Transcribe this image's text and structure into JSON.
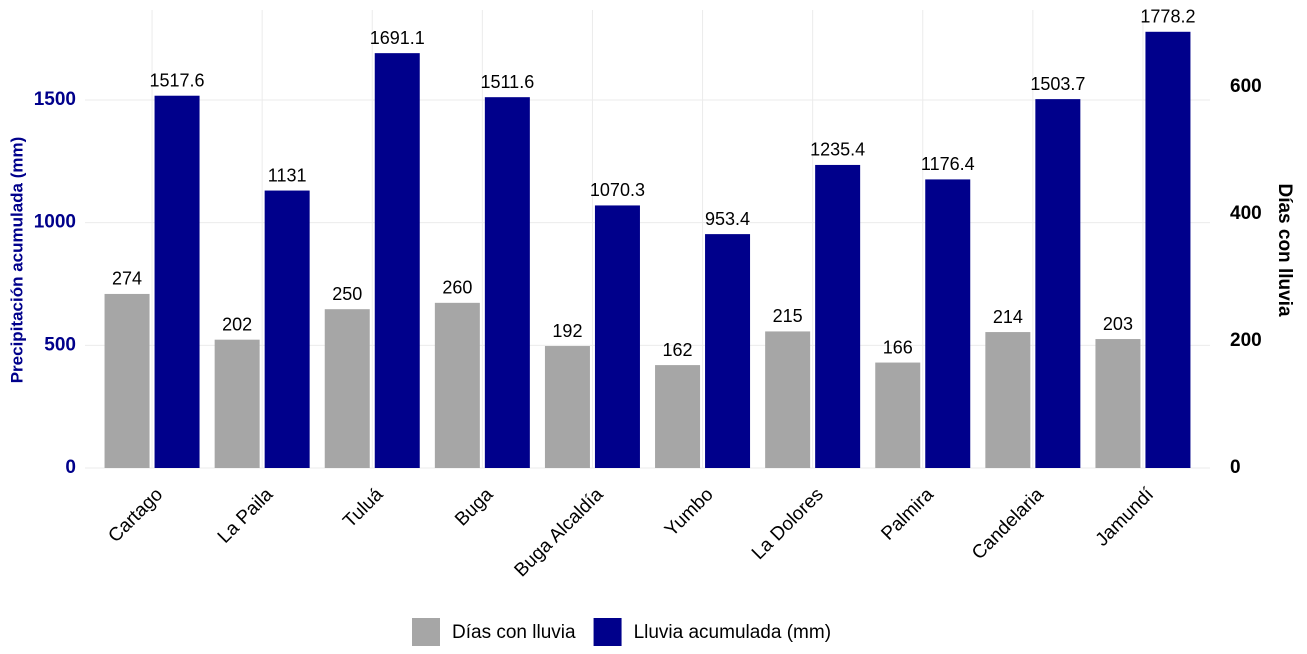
{
  "chart_data": {
    "type": "bar",
    "ylabel": "Precipitación acumulada (mm)",
    "y2label": "Días con lluvia",
    "categories": [
      "Cartago",
      "La Paila",
      "Tuluá",
      "Buga",
      "Buga Alcaldía",
      "Yumbo",
      "La Dolores",
      "Palmira",
      "Candelaria",
      "Jamundí"
    ],
    "series": [
      {
        "name": "Días con lluvia",
        "color": "#a6a6a6",
        "axis": "y2",
        "values": [
          274,
          202,
          250,
          260,
          192,
          162,
          215,
          166,
          214,
          203
        ]
      },
      {
        "name": "Lluvia acumulada (mm)",
        "color": "#00008b",
        "values": [
          1517.6,
          1131,
          1691.1,
          1511.6,
          1070.3,
          953.4,
          1235.4,
          1176.4,
          1503.7,
          1778.2
        ]
      }
    ],
    "ylim": [
      0,
      1867
    ],
    "yticks": [
      0,
      500,
      1000,
      1500
    ],
    "y2lim": [
      0,
      721
    ],
    "y2ticks": [
      0,
      200,
      400,
      600
    ],
    "grid": true,
    "legend": "bottom"
  }
}
